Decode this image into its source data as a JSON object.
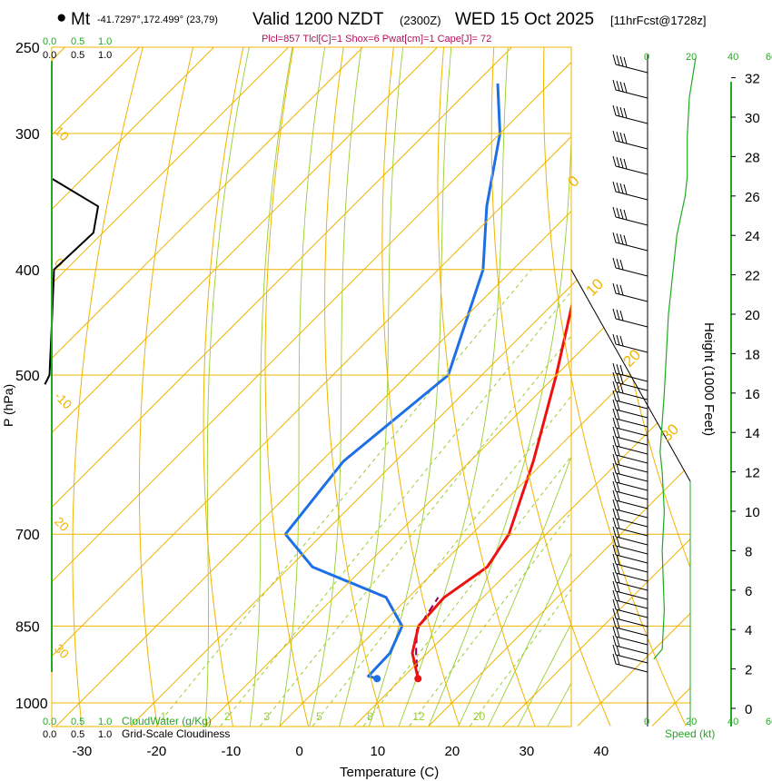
{
  "header": {
    "station": "Mt",
    "coords": "-41.7297°,172.499° (23,79)",
    "valid": "Valid 1200 NZDT",
    "utc": "(2300Z)",
    "date": "WED 15 Oct 2025",
    "fcst": "[11hrFcst@1728z]",
    "indices": "Plcl=857 Tlcl[C]=1 Shox=6 Pwat[cm]=1 Cape[J]= 72"
  },
  "colors": {
    "isotherm": "#f0b400",
    "dry_adiabat": "#f0b400",
    "moist_adiabat": "#9acd32",
    "mixing_ratio": "#9acd32",
    "temperature": "#ee1111",
    "dewpoint": "#1e6fe6",
    "parcel": "#8b0055",
    "cloud": "#000000",
    "green": "#22aa22"
  },
  "chart_data": {
    "type": "skew-t",
    "title": "Valid 1200 NZDT (2300Z) WED 15 Oct 2025",
    "xlabel": "Temperature (C)",
    "ylabel": "P (hPa)",
    "y2label": "Height (1000 Feet)",
    "xlim": [
      -35,
      49
    ],
    "ylim_hpa": [
      1050,
      250
    ],
    "x_ticks": [
      -30,
      -20,
      -10,
      0,
      10,
      20,
      30,
      40
    ],
    "p_ticks": [
      250,
      300,
      400,
      500,
      700,
      850,
      1000
    ],
    "height_ticks": [
      0,
      2,
      4,
      6,
      8,
      10,
      12,
      14,
      16,
      18,
      20,
      22,
      24,
      26,
      28,
      30,
      32
    ],
    "isotherm_labels": [
      {
        "t": -40,
        "label": "10"
      },
      {
        "t": -30,
        "label": "0"
      },
      {
        "t": -20,
        "label": "-10"
      },
      {
        "t": -10,
        "label": "20"
      },
      {
        "t": 0,
        "label": "30"
      }
    ],
    "dry_adiabat_labels": [
      "0",
      "10",
      "20",
      "30"
    ],
    "mixing_ratio_labels": [
      "1",
      "2",
      "3",
      "5",
      "8",
      "12",
      "20"
    ],
    "temperature": [
      {
        "p": 950,
        "t": 12.2
      },
      {
        "p": 900,
        "t": 8.0
      },
      {
        "p": 850,
        "t": 5.2
      },
      {
        "p": 800,
        "t": 4.8
      },
      {
        "p": 750,
        "t": 6.5
      },
      {
        "p": 700,
        "t": 5.0
      },
      {
        "p": 600,
        "t": -1.5
      },
      {
        "p": 500,
        "t": -10.0
      },
      {
        "p": 400,
        "t": -21.0
      },
      {
        "p": 350,
        "t": -28.0
      },
      {
        "p": 300,
        "t": -37.0
      },
      {
        "p": 270,
        "t": -43.0
      }
    ],
    "dewpoint": [
      {
        "p": 950,
        "t": 6.7
      },
      {
        "p": 945,
        "t": 5.2
      },
      {
        "p": 900,
        "t": 5.0
      },
      {
        "p": 850,
        "t": 3.0
      },
      {
        "p": 800,
        "t": -3.0
      },
      {
        "p": 750,
        "t": -17.0
      },
      {
        "p": 700,
        "t": -25.0
      },
      {
        "p": 600,
        "t": -27.0
      },
      {
        "p": 500,
        "t": -24.5
      },
      {
        "p": 400,
        "t": -34.0
      },
      {
        "p": 350,
        "t": -42.0
      },
      {
        "p": 300,
        "t": -50.0
      },
      {
        "p": 270,
        "t": -57.0
      }
    ],
    "parcel": [
      {
        "p": 950,
        "t": 12.2
      },
      {
        "p": 900,
        "t": 8.5
      },
      {
        "p": 857,
        "t": 5.5
      },
      {
        "p": 800,
        "t": 4.0
      }
    ],
    "cloud_water_ticks": [
      "0.0",
      "0.5",
      "1.0"
    ],
    "cloud_water_label": "CloudWater (g/Kg)",
    "cloudiness_ticks": [
      "0.0",
      "0.5",
      "1.0"
    ],
    "cloudiness_label": "Grid-Scale Cloudiness",
    "cloudiness": [
      {
        "p": 330,
        "c": 0.0
      },
      {
        "p": 350,
        "c": 1.0
      },
      {
        "p": 370,
        "c": 0.9
      },
      {
        "p": 400,
        "c": 0.05
      },
      {
        "p": 450,
        "c": 0.0
      },
      {
        "p": 500,
        "c": -0.05
      },
      {
        "p": 510,
        "c": -0.15
      }
    ],
    "speed_ticks": [
      "0",
      "20",
      "40",
      "60"
    ],
    "speed_label": "Speed (kt)",
    "wind_speed": [
      {
        "h": 2.5,
        "kt": 3
      },
      {
        "h": 3.0,
        "kt": 7
      },
      {
        "h": 5.0,
        "kt": 8
      },
      {
        "h": 8.0,
        "kt": 7
      },
      {
        "h": 10.0,
        "kt": 8
      },
      {
        "h": 12.0,
        "kt": 7
      },
      {
        "h": 13.0,
        "kt": 6
      },
      {
        "h": 16.0,
        "kt": 8
      },
      {
        "h": 20.0,
        "kt": 10
      },
      {
        "h": 24.0,
        "kt": 14
      },
      {
        "h": 26.0,
        "kt": 18
      },
      {
        "h": 27.0,
        "kt": 19
      },
      {
        "h": 29.0,
        "kt": 19
      },
      {
        "h": 31.0,
        "kt": 20
      },
      {
        "h": 33.0,
        "kt": 23
      }
    ]
  }
}
